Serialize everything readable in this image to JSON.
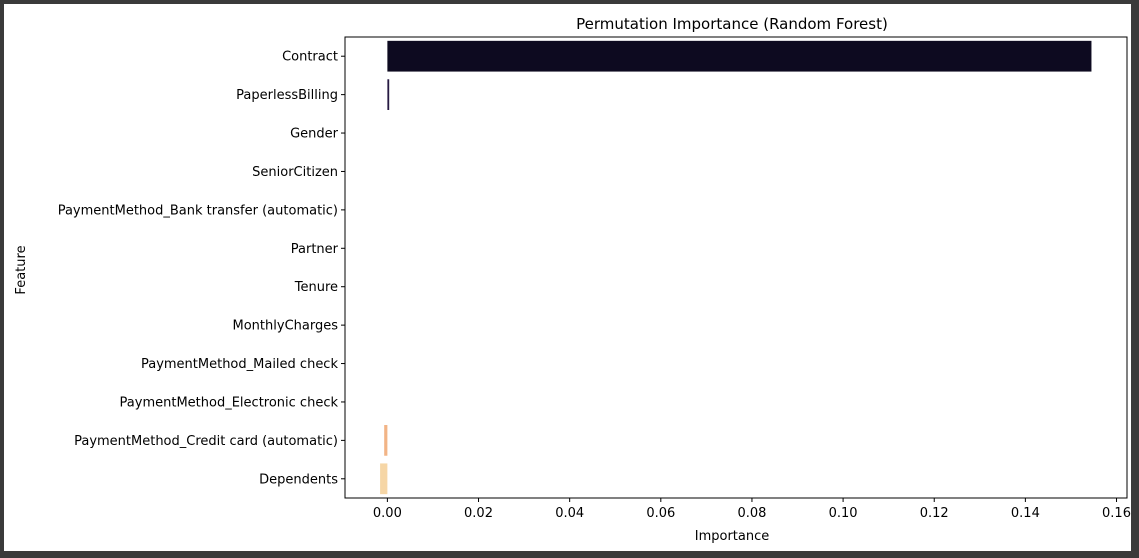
{
  "chart_data": {
    "type": "bar",
    "orientation": "horizontal",
    "title": "Permutation Importance (Random Forest)",
    "xlabel": "Importance",
    "ylabel": "Feature",
    "xlim": [
      -0.0093,
      0.1623
    ],
    "xticks": [
      "0.00",
      "0.02",
      "0.04",
      "0.06",
      "0.08",
      "0.10",
      "0.12",
      "0.14",
      "0.16"
    ],
    "xtick_values": [
      0.0,
      0.02,
      0.04,
      0.06,
      0.08,
      0.1,
      0.12,
      0.14,
      0.16
    ],
    "grid": false,
    "categories": [
      "Contract",
      "PaperlessBilling",
      "Gender",
      "SeniorCitizen",
      "PaymentMethod_Bank transfer (automatic)",
      "Partner",
      "Tenure",
      "MonthlyCharges",
      "PaymentMethod_Mailed check",
      "PaymentMethod_Electronic check",
      "PaymentMethod_Credit card (automatic)",
      "Dependents"
    ],
    "values": [
      0.1545,
      0.0004,
      0,
      0,
      0,
      0,
      0,
      0,
      0,
      0,
      -0.0007,
      -0.0016
    ],
    "colors": [
      "#0d0a20",
      "#271a42",
      "#3e2a5c",
      "#5a3470",
      "#783c7c",
      "#963f80",
      "#b44a80",
      "#cf5b7a",
      "#e5707a",
      "#ef8f7c",
      "#f2b486",
      "#f6d6a6"
    ]
  }
}
